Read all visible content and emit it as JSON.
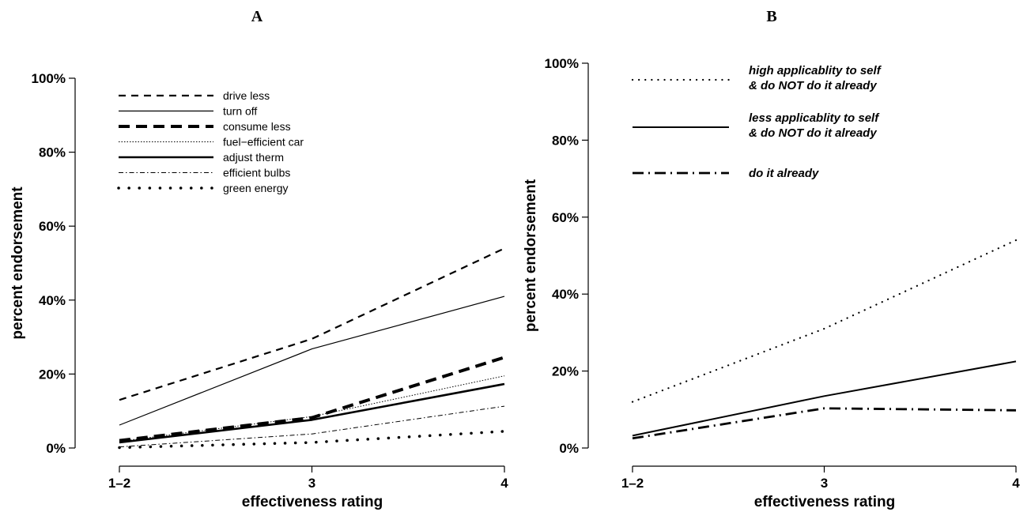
{
  "chart_data": [
    {
      "type": "line",
      "title": "A",
      "xlabel": "effectiveness rating",
      "ylabel": "percent endorsement",
      "categories": [
        "1–2",
        "3",
        "4"
      ],
      "yticks": [
        "0%",
        "20%",
        "40%",
        "60%",
        "80%",
        "100%"
      ],
      "ylim": [
        0,
        100
      ],
      "legend_position": "top-left",
      "grid": false,
      "series": [
        {
          "name": "drive less",
          "values": [
            13,
            29.5,
            54
          ],
          "style": "dashed"
        },
        {
          "name": "turn off",
          "values": [
            6.2,
            26.8,
            41
          ],
          "style": "solid-thin"
        },
        {
          "name": "consume less",
          "values": [
            2,
            8.2,
            24.5
          ],
          "style": "dashed-thick"
        },
        {
          "name": "fuel−efficient car",
          "values": [
            1.8,
            8.5,
            19.5
          ],
          "style": "dotted-thin"
        },
        {
          "name": "adjust therm",
          "values": [
            1.5,
            7.6,
            17.3
          ],
          "style": "solid-thick"
        },
        {
          "name": "efficient bulbs",
          "values": [
            0.3,
            3.8,
            11.3
          ],
          "style": "dashdot-thin"
        },
        {
          "name": "green energy",
          "values": [
            0.1,
            1.5,
            4.5
          ],
          "style": "dotted-thick"
        }
      ]
    },
    {
      "type": "line",
      "title": "B",
      "xlabel": "effectiveness rating",
      "ylabel": "percent endorsement",
      "categories": [
        "1–2",
        "3",
        "4"
      ],
      "yticks": [
        "0%",
        "20%",
        "40%",
        "60%",
        "80%",
        "100%"
      ],
      "ylim": [
        0,
        100
      ],
      "legend_position": "top-left",
      "grid": false,
      "series": [
        {
          "name_lines": [
            "high applicablity to self",
            "& do NOT do it already"
          ],
          "values": [
            12,
            31,
            54
          ],
          "style": "dotted"
        },
        {
          "name_lines": [
            "less applicablity to self",
            "& do NOT do it already"
          ],
          "values": [
            3.2,
            13.5,
            22.5
          ],
          "style": "solid"
        },
        {
          "name_lines": [
            "do it already"
          ],
          "values": [
            2.5,
            10.3,
            9.8
          ],
          "style": "dashdot"
        }
      ]
    }
  ]
}
